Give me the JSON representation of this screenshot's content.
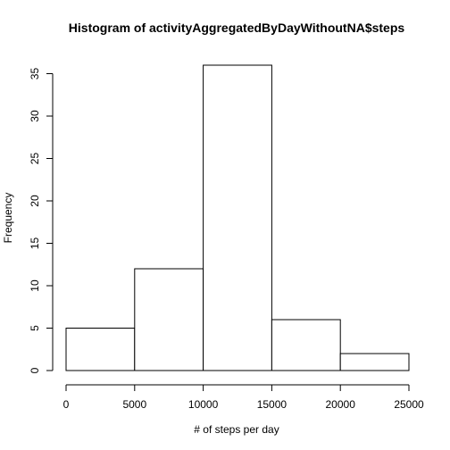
{
  "chart_data": {
    "type": "bar",
    "title": "Histogram of activityAggregatedByDayWithoutNA$steps",
    "xlabel": "# of steps per day",
    "ylabel": "Frequency",
    "bins": [
      {
        "from": 0,
        "to": 5000,
        "count": 5
      },
      {
        "from": 5000,
        "to": 10000,
        "count": 12
      },
      {
        "from": 10000,
        "to": 15000,
        "count": 36
      },
      {
        "from": 15000,
        "to": 20000,
        "count": 6
      },
      {
        "from": 20000,
        "to": 25000,
        "count": 2
      }
    ],
    "xlim": [
      0,
      25000
    ],
    "ylim": [
      0,
      36
    ],
    "x_ticks": [
      0,
      5000,
      10000,
      15000,
      20000,
      25000
    ],
    "y_ticks": [
      0,
      5,
      10,
      15,
      20,
      25,
      30,
      35
    ],
    "grid": false,
    "bar_fill": "#ffffff",
    "bar_stroke": "#000000"
  }
}
